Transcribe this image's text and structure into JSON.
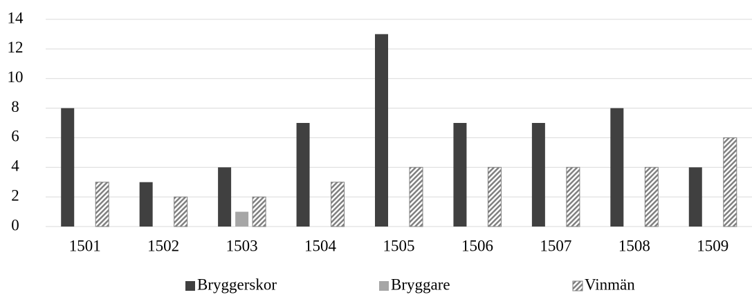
{
  "chart_data": {
    "type": "bar",
    "categories": [
      "1501",
      "1502",
      "1503",
      "1504",
      "1505",
      "1506",
      "1507",
      "1508",
      "1509"
    ],
    "series": [
      {
        "name": "Bryggerskor",
        "color": "#404040",
        "values": [
          8,
          3,
          4,
          7,
          13,
          7,
          7,
          8,
          4
        ]
      },
      {
        "name": "Bryggare",
        "color": "#a6a6a6",
        "values": [
          0,
          0,
          1,
          0,
          0,
          0,
          0,
          0,
          0
        ]
      },
      {
        "name": "Vinmän",
        "color": "#7f7f7f",
        "pattern": "diagonal",
        "values": [
          3,
          2,
          2,
          3,
          4,
          4,
          4,
          4,
          6
        ]
      }
    ],
    "ylim": [
      0,
      14
    ],
    "yticks": [
      0,
      2,
      4,
      6,
      8,
      10,
      12,
      14
    ],
    "grid": true,
    "legend": "bottom"
  }
}
